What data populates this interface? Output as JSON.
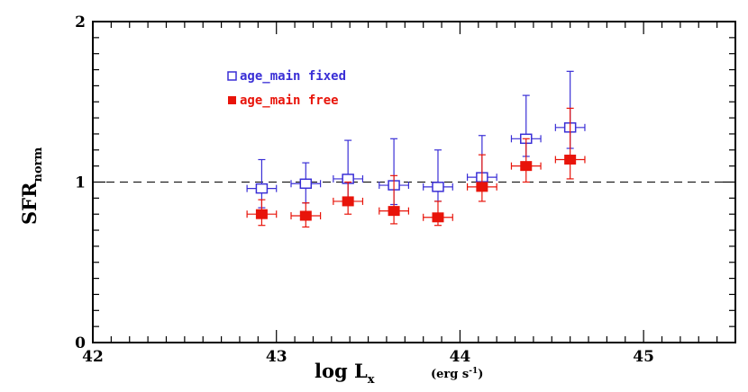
{
  "chart_data": {
    "type": "scatter",
    "xlim": [
      42,
      45.5
    ],
    "ylim": [
      0,
      2
    ],
    "x_ticks": [
      "42",
      "43",
      "44",
      "45"
    ],
    "y_ticks": [
      "0",
      "1",
      "2"
    ],
    "xlabel_main": "log L",
    "xlabel_sub": "x",
    "xlabel_units": "(erg s",
    "xlabel_units_sup": "-1",
    "xlabel_units_end": ")",
    "ylabel_main": "SFR",
    "ylabel_sub": "norm",
    "reference_line": {
      "y": 1,
      "style": "dashed"
    },
    "grid": false,
    "legend_position": "top-left",
    "series": [
      {
        "name": "age_main fixed",
        "color": "#3a2fd6",
        "marker": "open-square",
        "points": [
          {
            "x": 42.92,
            "y": 0.96,
            "xerr": 0.08,
            "ylo": 0.84,
            "yhi": 1.14
          },
          {
            "x": 43.16,
            "y": 0.99,
            "xerr": 0.08,
            "ylo": 0.87,
            "yhi": 1.12
          },
          {
            "x": 43.39,
            "y": 1.02,
            "xerr": 0.08,
            "ylo": 0.89,
            "yhi": 1.26
          },
          {
            "x": 43.64,
            "y": 0.98,
            "xerr": 0.08,
            "ylo": 0.86,
            "yhi": 1.27
          },
          {
            "x": 43.88,
            "y": 0.97,
            "xerr": 0.08,
            "ylo": 0.88,
            "yhi": 1.2
          },
          {
            "x": 44.12,
            "y": 1.03,
            "xerr": 0.08,
            "ylo": 0.95,
            "yhi": 1.29
          },
          {
            "x": 44.36,
            "y": 1.27,
            "xerr": 0.08,
            "ylo": 1.16,
            "yhi": 1.54
          },
          {
            "x": 44.6,
            "y": 1.34,
            "xerr": 0.08,
            "ylo": 1.21,
            "yhi": 1.69
          }
        ]
      },
      {
        "name": "age_main free",
        "color": "#e8140a",
        "marker": "filled-square",
        "points": [
          {
            "x": 42.92,
            "y": 0.8,
            "xerr": 0.08,
            "ylo": 0.73,
            "yhi": 0.89
          },
          {
            "x": 43.16,
            "y": 0.79,
            "xerr": 0.08,
            "ylo": 0.72,
            "yhi": 0.87
          },
          {
            "x": 43.39,
            "y": 0.88,
            "xerr": 0.08,
            "ylo": 0.8,
            "yhi": 1.0
          },
          {
            "x": 43.64,
            "y": 0.82,
            "xerr": 0.08,
            "ylo": 0.74,
            "yhi": 1.04
          },
          {
            "x": 43.88,
            "y": 0.78,
            "xerr": 0.08,
            "ylo": 0.73,
            "yhi": 0.88
          },
          {
            "x": 44.12,
            "y": 0.97,
            "xerr": 0.08,
            "ylo": 0.88,
            "yhi": 1.17
          },
          {
            "x": 44.36,
            "y": 1.1,
            "xerr": 0.08,
            "ylo": 1.0,
            "yhi": 1.27
          },
          {
            "x": 44.6,
            "y": 1.14,
            "xerr": 0.08,
            "ylo": 1.02,
            "yhi": 1.46
          }
        ]
      }
    ]
  }
}
